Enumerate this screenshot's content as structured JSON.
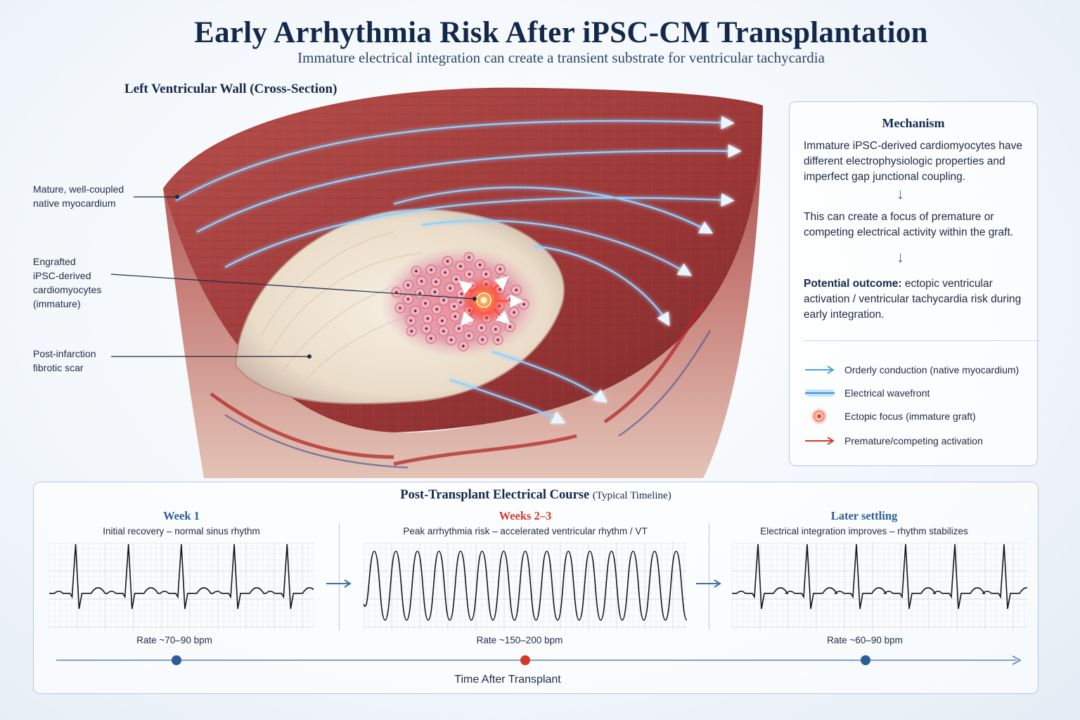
{
  "title": "Early Arrhythmia Risk After iPSC-CM Transplantation",
  "subtitle": "Immature electrical integration can create a transient substrate for ventricular tachycardia",
  "section_title": "Left Ventricular Wall (Cross-Section)",
  "callouts": {
    "native": [
      "Mature, well-coupled",
      "native myocardium"
    ],
    "graft": [
      "Engrafted",
      "iPSC-derived",
      "cardiomyocytes",
      "(immature)"
    ],
    "scar": [
      "Post-infarction",
      "fibrotic scar"
    ]
  },
  "mechanism": {
    "title": "Mechanism",
    "step1": "Immature iPSC-derived cardiomyocytes have different electrophysiologic properties and imperfect gap junctional coupling.",
    "step2": "This can create a focus of premature or competing electrical activity within the graft.",
    "outcome_label": "Potential outcome:",
    "outcome_text": "ectopic ventricular activation / ventricular tachycardia risk during early integration."
  },
  "legend": [
    {
      "label": "Orderly conduction (native myocardium)",
      "icon": "blue-arrow-icon"
    },
    {
      "label": "Electrical wavefront",
      "icon": "glow-line-icon"
    },
    {
      "label": "Ectopic focus (immature graft)",
      "icon": "ectopic-focus-icon"
    },
    {
      "label": "Premature/competing activation",
      "icon": "red-arrow-icon"
    }
  ],
  "timeline": {
    "title": "Post-Transplant Electrical Course",
    "title_suffix": "(Typical Timeline)",
    "axis_label": "Time After Transplant",
    "stages": [
      {
        "title": "Week 1",
        "desc": "Initial recovery – normal sinus rhythm",
        "rate": "Rate ~70–90 bpm",
        "color": "#2a5d99",
        "rhythm": "sinus",
        "beats": 5
      },
      {
        "title": "Weeks 2–3",
        "desc": "Peak arrhythmia risk – accelerated ventricular rhythm / VT",
        "rate": "Rate ~150–200 bpm",
        "color": "#d2392b",
        "rhythm": "vt",
        "beats": 15
      },
      {
        "title": "Later settling",
        "desc": "Electrical integration improves – rhythm stabilizes",
        "rate": "Rate ~60–90 bpm",
        "color": "#2a5d99",
        "rhythm": "sinus",
        "beats": 6
      }
    ]
  },
  "colors": {
    "navy": "#13294b",
    "accent_blue": "#2a5d99",
    "accent_red": "#d2392b",
    "conduction_blue": "#4aa3e0",
    "myocardium": "#a8403f",
    "scar": "#efe3d2"
  }
}
